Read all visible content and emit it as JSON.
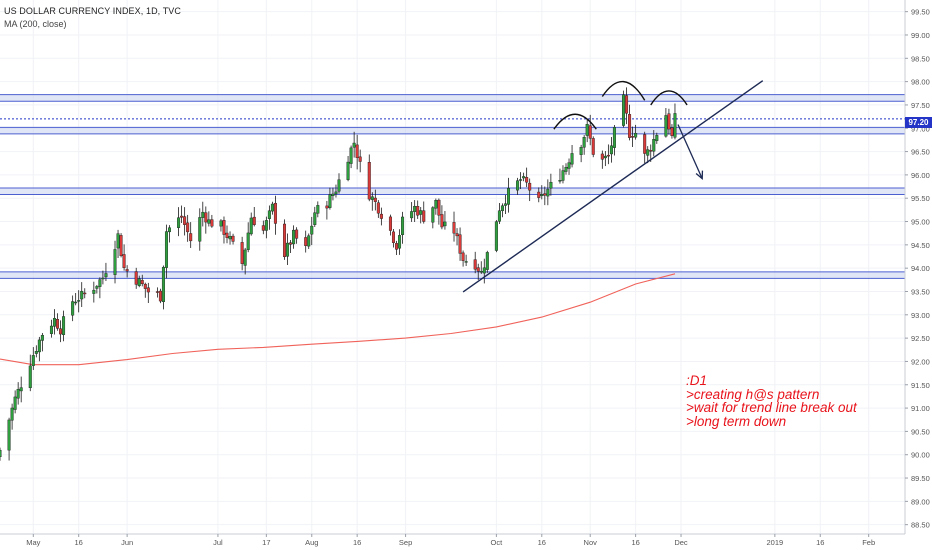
{
  "header": {
    "title": "US DOLLAR CURRENCY INDEX, 1D, TVC",
    "indicator": "MA (200, close)"
  },
  "last_price_label": "97.20",
  "annotation": {
    "lines": [
      ":D1",
      ">creating h@s pattern",
      ">wait for trend line break out",
      ">long term down"
    ]
  },
  "colors": {
    "up": "#2e9e3e",
    "down": "#d93a3a",
    "ma": "#f0625a",
    "trendline": "#1d2a55",
    "zone_fill": "#c8d2f0",
    "zone_line": "#4c5fd0",
    "note": "#e8141c",
    "price_tag": "#2334c6"
  },
  "chart_data": {
    "type": "candlestick",
    "y_axis": {
      "min": 88.3,
      "max": 99.75,
      "ticks": [
        "99.50",
        "99.00",
        "98.50",
        "98.00",
        "97.50",
        "97.00",
        "96.50",
        "96.00",
        "95.50",
        "95.00",
        "94.50",
        "94.00",
        "93.50",
        "93.00",
        "92.50",
        "92.00",
        "91.50",
        "91.00",
        "90.50",
        "90.00",
        "89.50",
        "89.00",
        "88.50"
      ]
    },
    "x_axis": {
      "start": "2018-04-20",
      "end": "2019-02-13",
      "ticks": [
        {
          "label": "May",
          "date": "2018-05-01"
        },
        {
          "label": "16",
          "date": "2018-05-16"
        },
        {
          "label": "Jun",
          "date": "2018-06-01"
        },
        {
          "label": "Jul",
          "date": "2018-07-01"
        },
        {
          "label": "17",
          "date": "2018-07-17"
        },
        {
          "label": "Aug",
          "date": "2018-08-01"
        },
        {
          "label": "16",
          "date": "2018-08-16"
        },
        {
          "label": "Sep",
          "date": "2018-09-01"
        },
        {
          "label": "Oct",
          "date": "2018-10-01"
        },
        {
          "label": "16",
          "date": "2018-10-16"
        },
        {
          "label": "Nov",
          "date": "2018-11-01"
        },
        {
          "label": "16",
          "date": "2018-11-16"
        },
        {
          "label": "Dec",
          "date": "2018-12-01"
        },
        {
          "label": "2019",
          "date": "2019-01-01"
        },
        {
          "label": "16",
          "date": "2019-01-16"
        },
        {
          "label": "Feb",
          "date": "2019-02-01"
        }
      ]
    },
    "horizontal_zones": [
      {
        "low": 97.58,
        "high": 97.72
      },
      {
        "low": 96.88,
        "high": 97.02
      },
      {
        "low": 95.58,
        "high": 95.72
      },
      {
        "low": 93.78,
        "high": 93.92
      }
    ],
    "last_price_line": 97.2,
    "close_anchors": [
      [
        "2018-04-20",
        90.1
      ],
      [
        "2018-04-25",
        91.2
      ],
      [
        "2018-04-30",
        92.0
      ],
      [
        "2018-05-04",
        92.6
      ],
      [
        "2018-05-08",
        92.9
      ],
      [
        "2018-05-10",
        92.7
      ],
      [
        "2018-05-14",
        93.3
      ],
      [
        "2018-05-17",
        93.4
      ],
      [
        "2018-05-21",
        93.6
      ],
      [
        "2018-05-24",
        93.8
      ],
      [
        "2018-05-29",
        94.7
      ],
      [
        "2018-05-31",
        94.0
      ],
      [
        "2018-06-05",
        93.7
      ],
      [
        "2018-06-08",
        93.5
      ],
      [
        "2018-06-12",
        93.4
      ],
      [
        "2018-06-14",
        94.8
      ],
      [
        "2018-06-19",
        95.1
      ],
      [
        "2018-06-22",
        94.6
      ],
      [
        "2018-06-26",
        95.2
      ],
      [
        "2018-06-28",
        95.0
      ],
      [
        "2018-07-02",
        94.9
      ],
      [
        "2018-07-05",
        94.6
      ],
      [
        "2018-07-09",
        94.1
      ],
      [
        "2018-07-12",
        95.1
      ],
      [
        "2018-07-16",
        94.8
      ],
      [
        "2018-07-19",
        95.3
      ],
      [
        "2018-07-23",
        94.3
      ],
      [
        "2018-07-26",
        94.7
      ],
      [
        "2018-07-30",
        94.4
      ],
      [
        "2018-08-02",
        95.2
      ],
      [
        "2018-08-06",
        95.4
      ],
      [
        "2018-08-09",
        95.7
      ],
      [
        "2018-08-13",
        96.4
      ],
      [
        "2018-08-15",
        96.7
      ],
      [
        "2018-08-17",
        96.2
      ],
      [
        "2018-08-20",
        95.6
      ],
      [
        "2018-08-23",
        95.3
      ],
      [
        "2018-08-27",
        94.8
      ],
      [
        "2018-08-29",
        94.5
      ],
      [
        "2018-08-31",
        95.0
      ],
      [
        "2018-09-04",
        95.3
      ],
      [
        "2018-09-07",
        95.1
      ],
      [
        "2018-09-11",
        95.4
      ],
      [
        "2018-09-13",
        94.9
      ],
      [
        "2018-09-17",
        94.8
      ],
      [
        "2018-09-20",
        94.2
      ],
      [
        "2018-09-24",
        94.1
      ],
      [
        "2018-09-26",
        93.9
      ],
      [
        "2018-09-28",
        94.3
      ],
      [
        "2018-10-02",
        95.3
      ],
      [
        "2018-10-05",
        95.6
      ],
      [
        "2018-10-09",
        95.9
      ],
      [
        "2018-10-11",
        95.8
      ],
      [
        "2018-10-15",
        95.4
      ],
      [
        "2018-10-17",
        95.6
      ],
      [
        "2018-10-22",
        96.0
      ],
      [
        "2018-10-24",
        96.2
      ],
      [
        "2018-10-26",
        96.5
      ],
      [
        "2018-10-29",
        96.7
      ],
      [
        "2018-10-31",
        97.0
      ],
      [
        "2018-11-02",
        96.5
      ],
      [
        "2018-11-05",
        96.3
      ],
      [
        "2018-11-07",
        96.4
      ],
      [
        "2018-11-09",
        96.9
      ],
      [
        "2018-11-12",
        97.6
      ],
      [
        "2018-11-14",
        96.9
      ],
      [
        "2018-11-16",
        96.9
      ],
      [
        "2018-11-19",
        96.4
      ],
      [
        "2018-11-21",
        96.6
      ],
      [
        "2018-11-23",
        96.9
      ],
      [
        "2018-11-26",
        97.3
      ],
      [
        "2018-11-28",
        96.8
      ],
      [
        "2018-11-29",
        97.2
      ]
    ],
    "ma_200": [
      [
        "2018-04-20",
        92.05
      ],
      [
        "2018-05-01",
        91.93
      ],
      [
        "2018-05-16",
        91.93
      ],
      [
        "2018-06-01",
        92.04
      ],
      [
        "2018-06-16",
        92.17
      ],
      [
        "2018-07-01",
        92.26
      ],
      [
        "2018-07-16",
        92.3
      ],
      [
        "2018-08-01",
        92.37
      ],
      [
        "2018-08-16",
        92.43
      ],
      [
        "2018-09-01",
        92.5
      ],
      [
        "2018-09-16",
        92.6
      ],
      [
        "2018-10-01",
        92.74
      ],
      [
        "2018-10-16",
        92.95
      ],
      [
        "2018-11-01",
        93.27
      ],
      [
        "2018-11-16",
        93.66
      ],
      [
        "2018-11-29",
        93.88
      ]
    ],
    "trendline": {
      "start": [
        "2018-09-20",
        93.49
      ],
      "end": [
        "2018-12-28",
        98.02
      ]
    },
    "arrow": {
      "start": [
        "2018-11-30",
        97.08
      ],
      "end": [
        "2018-12-08",
        95.92
      ]
    },
    "head_and_shoulders_arcs": [
      {
        "start": [
          "2018-10-20",
          96.98
        ],
        "peak": [
          "2018-10-27",
          97.3
        ],
        "end": [
          "2018-11-03",
          96.98
        ]
      },
      {
        "start": [
          "2018-11-05",
          97.68
        ],
        "peak": [
          "2018-11-12",
          98.0
        ],
        "end": [
          "2018-11-19",
          97.6
        ]
      },
      {
        "start": [
          "2018-11-21",
          97.5
        ],
        "peak": [
          "2018-11-27",
          97.8
        ],
        "end": [
          "2018-12-03",
          97.5
        ]
      }
    ]
  }
}
